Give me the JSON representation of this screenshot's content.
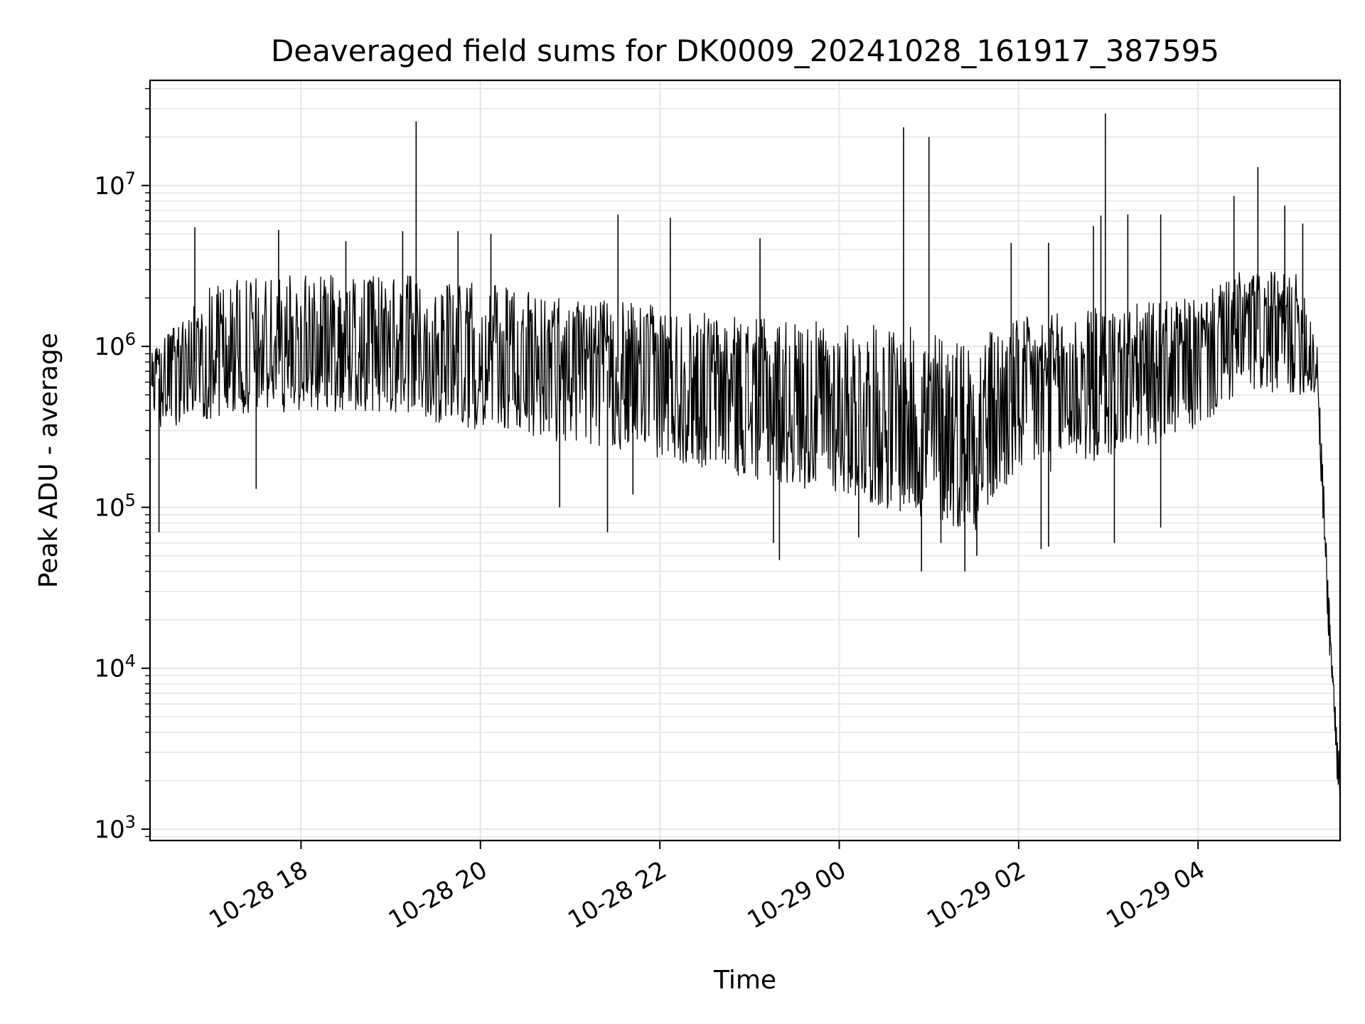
{
  "chart_data": {
    "type": "line",
    "title": "Deaveraged field sums for DK0009_20241028_161917_387595",
    "xlabel": "Time",
    "ylabel": "Peak ADU - average",
    "yscale": "log",
    "grid": true,
    "legend": "none",
    "line_color": "#000000",
    "grid_color": "#e6e6e6",
    "x_start": "2024-10-28 16:19",
    "x_end": "2024-10-29 05:35",
    "xlim": [
      "2024-10-28 16:19",
      "2024-10-29 05:35"
    ],
    "ylim": [
      850,
      45000000
    ],
    "x_ticks": [
      {
        "value": "2024-10-28 18:00",
        "label": "10-28 18"
      },
      {
        "value": "2024-10-28 20:00",
        "label": "10-28 20"
      },
      {
        "value": "2024-10-28 22:00",
        "label": "10-28 22"
      },
      {
        "value": "2024-10-29 00:00",
        "label": "10-29 00"
      },
      {
        "value": "2024-10-29 02:00",
        "label": "10-29 02"
      },
      {
        "value": "2024-10-29 04:00",
        "label": "10-29 04"
      }
    ],
    "y_ticks": [
      {
        "value": 1000,
        "base": "10",
        "exp": "3"
      },
      {
        "value": 10000,
        "base": "10",
        "exp": "4"
      },
      {
        "value": 100000,
        "base": "10",
        "exp": "5"
      },
      {
        "value": 1000000,
        "base": "10",
        "exp": "6"
      },
      {
        "value": 10000000,
        "base": "10",
        "exp": "7"
      }
    ],
    "envelope": [
      {
        "time": "2024-10-28 16:20",
        "low": 300000,
        "center": 600000,
        "high": 900000
      },
      {
        "time": "2024-10-28 17:00",
        "low": 350000,
        "center": 900000,
        "high": 2500000
      },
      {
        "time": "2024-10-28 18:00",
        "low": 400000,
        "center": 1000000,
        "high": 2800000
      },
      {
        "time": "2024-10-28 19:00",
        "low": 380000,
        "center": 950000,
        "high": 2800000
      },
      {
        "time": "2024-10-28 20:00",
        "low": 300000,
        "center": 900000,
        "high": 2500000
      },
      {
        "time": "2024-10-28 21:00",
        "low": 250000,
        "center": 750000,
        "high": 2000000
      },
      {
        "time": "2024-10-28 22:00",
        "low": 200000,
        "center": 650000,
        "high": 1800000
      },
      {
        "time": "2024-10-28 23:00",
        "low": 150000,
        "center": 500000,
        "high": 1500000
      },
      {
        "time": "2024-10-29 00:00",
        "low": 120000,
        "center": 400000,
        "high": 1400000
      },
      {
        "time": "2024-10-29 01:00",
        "low": 80000,
        "center": 300000,
        "high": 1300000
      },
      {
        "time": "2024-10-29 01:30",
        "low": 70000,
        "center": 260000,
        "high": 1200000
      },
      {
        "time": "2024-10-29 02:00",
        "low": 150000,
        "center": 500000,
        "high": 1500000
      },
      {
        "time": "2024-10-29 03:00",
        "low": 200000,
        "center": 600000,
        "high": 1800000
      },
      {
        "time": "2024-10-29 04:00",
        "low": 300000,
        "center": 800000,
        "high": 2000000
      },
      {
        "time": "2024-10-29 04:30",
        "low": 500000,
        "center": 1300000,
        "high": 3000000
      },
      {
        "time": "2024-10-29 05:10",
        "low": 500000,
        "center": 1200000,
        "high": 2800000
      },
      {
        "time": "2024-10-29 05:20",
        "low": 450000,
        "center": 700000,
        "high": 1200000
      }
    ],
    "tail": [
      {
        "time": "2024-10-29 05:21",
        "value": 350000
      },
      {
        "time": "2024-10-29 05:23",
        "value": 150000
      },
      {
        "time": "2024-10-29 05:25",
        "value": 60000
      },
      {
        "time": "2024-10-29 05:27",
        "value": 25000
      },
      {
        "time": "2024-10-29 05:29",
        "value": 12000
      },
      {
        "time": "2024-10-29 05:31",
        "value": 6000
      },
      {
        "time": "2024-10-29 05:33",
        "value": 3000
      },
      {
        "time": "2024-10-29 05:35",
        "value": 1400
      }
    ],
    "spikes": [
      {
        "time": "2024-10-28 16:49",
        "value": 5500000
      },
      {
        "time": "2024-10-28 17:45",
        "value": 5300000
      },
      {
        "time": "2024-10-28 18:30",
        "value": 4500000
      },
      {
        "time": "2024-10-28 19:08",
        "value": 5200000
      },
      {
        "time": "2024-10-28 19:17",
        "value": 25000000
      },
      {
        "time": "2024-10-28 19:45",
        "value": 5200000
      },
      {
        "time": "2024-10-28 20:07",
        "value": 5000000
      },
      {
        "time": "2024-10-28 21:32",
        "value": 6600000
      },
      {
        "time": "2024-10-28 22:07",
        "value": 6300000
      },
      {
        "time": "2024-10-28 23:07",
        "value": 4700000
      },
      {
        "time": "2024-10-29 00:43",
        "value": 23000000
      },
      {
        "time": "2024-10-29 01:00",
        "value": 20000000
      },
      {
        "time": "2024-10-29 01:55",
        "value": 4400000
      },
      {
        "time": "2024-10-29 02:20",
        "value": 4400000
      },
      {
        "time": "2024-10-29 02:50",
        "value": 5600000
      },
      {
        "time": "2024-10-29 02:55",
        "value": 6500000
      },
      {
        "time": "2024-10-29 02:58",
        "value": 28000000
      },
      {
        "time": "2024-10-29 03:13",
        "value": 6600000
      },
      {
        "time": "2024-10-29 03:35",
        "value": 6600000
      },
      {
        "time": "2024-10-29 04:24",
        "value": 8600000
      },
      {
        "time": "2024-10-29 04:40",
        "value": 13000000
      },
      {
        "time": "2024-10-29 04:58",
        "value": 7500000
      },
      {
        "time": "2024-10-29 05:10",
        "value": 5800000
      }
    ],
    "dips": [
      {
        "time": "2024-10-28 16:25",
        "value": 70000
      },
      {
        "time": "2024-10-28 17:30",
        "value": 130000
      },
      {
        "time": "2024-10-28 20:53",
        "value": 100000
      },
      {
        "time": "2024-10-28 21:25",
        "value": 70000
      },
      {
        "time": "2024-10-28 21:42",
        "value": 120000
      },
      {
        "time": "2024-10-28 23:16",
        "value": 60000
      },
      {
        "time": "2024-10-28 23:20",
        "value": 47000
      },
      {
        "time": "2024-10-29 00:13",
        "value": 65000
      },
      {
        "time": "2024-10-29 00:55",
        "value": 40000
      },
      {
        "time": "2024-10-29 01:08",
        "value": 60000
      },
      {
        "time": "2024-10-29 01:24",
        "value": 40000
      },
      {
        "time": "2024-10-29 01:32",
        "value": 50000
      },
      {
        "time": "2024-10-29 02:15",
        "value": 55000
      },
      {
        "time": "2024-10-29 02:20",
        "value": 57000
      },
      {
        "time": "2024-10-29 03:04",
        "value": 60000
      },
      {
        "time": "2024-10-29 03:35",
        "value": 75000
      }
    ]
  }
}
